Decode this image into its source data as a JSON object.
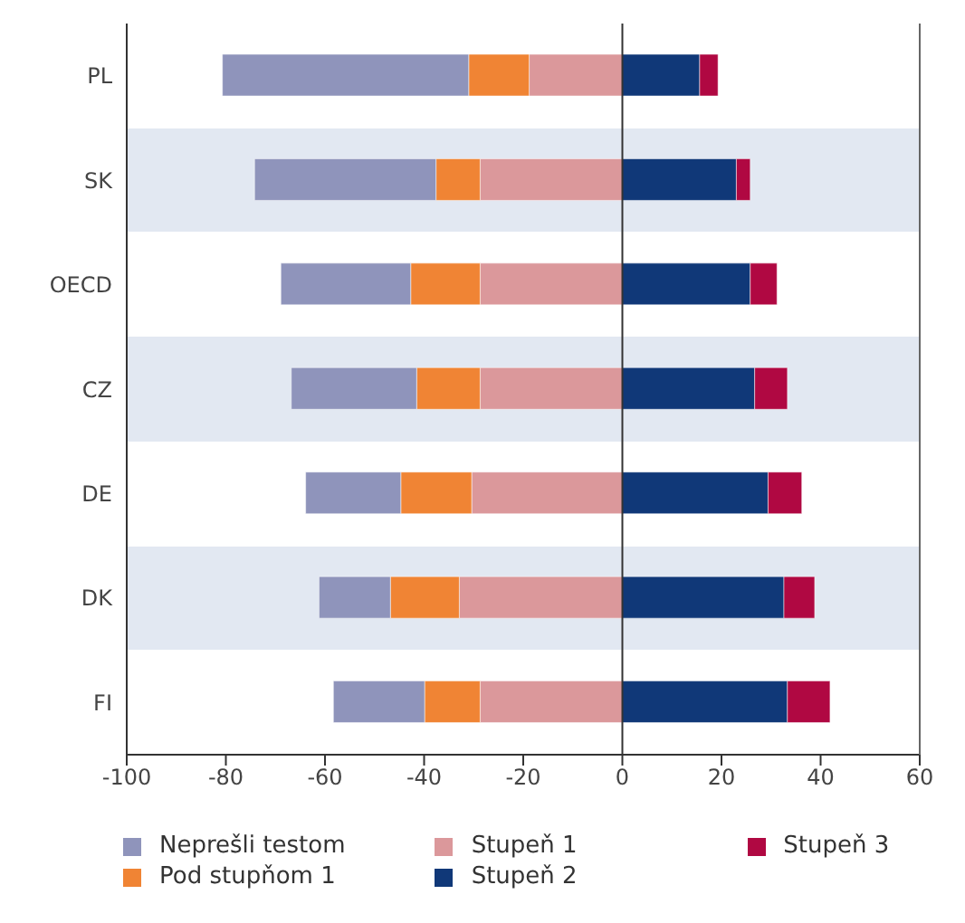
{
  "chart_data": {
    "type": "bar",
    "orientation": "horizontal",
    "stacked": true,
    "categories": [
      "PL",
      "SK",
      "OECD",
      "CZ",
      "DE",
      "DK",
      "FI"
    ],
    "series": [
      {
        "name": "Stupeň 1",
        "color": "#db989b",
        "values": [
          -18.8,
          -28.7,
          -28.7,
          -28.7,
          -30.4,
          -32.9,
          -28.7
        ]
      },
      {
        "name": "Pod stupňom 1",
        "color": "#f08434",
        "values": [
          -12.2,
          -8.9,
          -14,
          -12.8,
          -14.3,
          -13.9,
          -11.2
        ]
      },
      {
        "name": "Neprešli testom",
        "color": "#8f94bb",
        "values": [
          -49.7,
          -36.6,
          -26.2,
          -25.3,
          -19.2,
          -14.4,
          -18.4
        ]
      },
      {
        "name": "Stupeň 2",
        "color": "#103878",
        "values": [
          15.6,
          23,
          25.8,
          26.7,
          29.4,
          32.6,
          33.3
        ]
      },
      {
        "name": "Stupeň 3",
        "color": "#b00842",
        "values": [
          3.7,
          2.8,
          5.4,
          6.6,
          6.8,
          6.2,
          8.6
        ]
      }
    ],
    "xlim": [
      -100,
      60
    ],
    "xticks": [
      -100,
      -80,
      -60,
      -40,
      -20,
      0,
      20,
      40,
      60
    ],
    "ref_lines": [
      {
        "axis": "x",
        "value": 0,
        "color": "#333333"
      }
    ],
    "legend": "bottom"
  }
}
